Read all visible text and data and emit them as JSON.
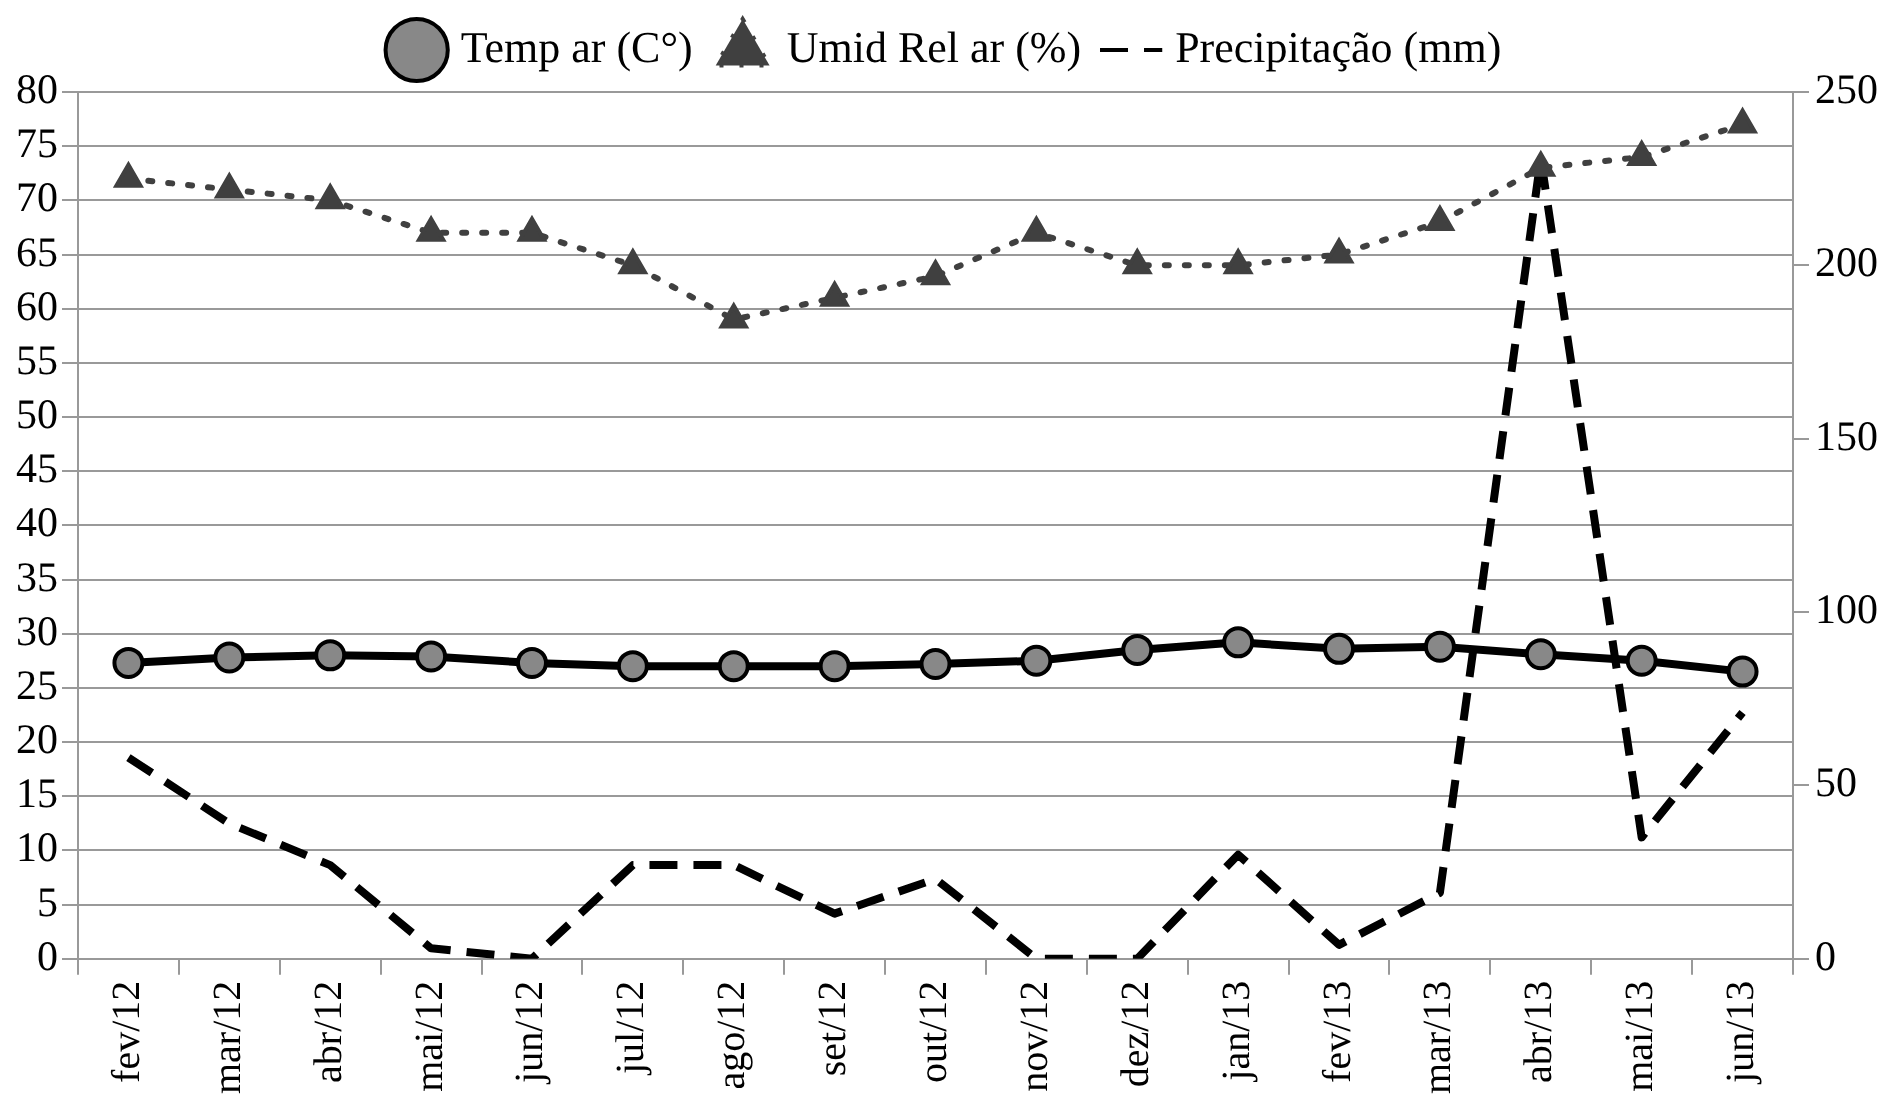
{
  "chart_data": {
    "type": "line",
    "categories": [
      "fev/12",
      "mar/12",
      "abr/12",
      "mai/12",
      "jun/12",
      "jul/12",
      "ago/12",
      "set/12",
      "out/12",
      "nov/12",
      "dez/12",
      "jan/13",
      "fev/13",
      "mar/13",
      "abr/13",
      "mai/13",
      "jun/13"
    ],
    "series": [
      {
        "name": "Temp ar (C°)",
        "color": "#000000",
        "marker": "circle",
        "line_style": "solid",
        "values": [
          27.3,
          27.8,
          28,
          27.9,
          27.3,
          27,
          27,
          27,
          27.2,
          27.5,
          28.5,
          29.2,
          28.6,
          28.8,
          28.1,
          27.5,
          26.5
        ]
      },
      {
        "name": "Umid Rel ar (%)",
        "color": "#404040",
        "marker": "triangle",
        "line_style": "dotted",
        "values": [
          72,
          71,
          70,
          67,
          67,
          64,
          59,
          61,
          63,
          67,
          64,
          64,
          65,
          68,
          73,
          74,
          77
        ]
      },
      {
        "name": "Precipitação (mm)",
        "color": "#000000",
        "marker": "none",
        "line_style": "dashed",
        "axis": "y2",
        "values": [
          58,
          39,
          27,
          3,
          0,
          27,
          27,
          13,
          23,
          0,
          0,
          30,
          4,
          19,
          231,
          35,
          71
        ]
      }
    ],
    "ylim": [
      0,
      80
    ],
    "yticks": [
      0,
      5,
      10,
      15,
      20,
      25,
      30,
      35,
      40,
      45,
      50,
      55,
      60,
      65,
      70,
      75,
      80
    ],
    "y2lim": [
      0,
      250
    ],
    "y2ticks": [
      0,
      50,
      100,
      150,
      200,
      250
    ],
    "grid": "y",
    "legend": "top"
  }
}
